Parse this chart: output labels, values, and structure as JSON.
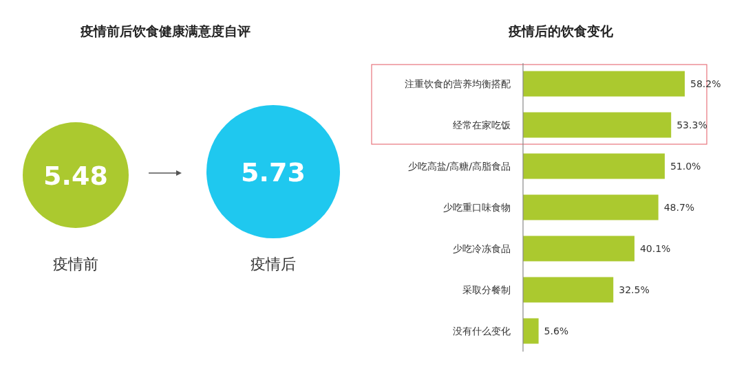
{
  "chart_data": [
    {
      "type": "other",
      "title": "疫情前后饮食健康满意度自评",
      "categories": [
        "疫情前",
        "疫情后"
      ],
      "values": [
        5.48,
        5.73
      ],
      "colors": [
        "#abc92f",
        "#1fc8ef"
      ],
      "data_labels": true
    },
    {
      "type": "bar",
      "orientation": "horizontal",
      "title": "疫情后的饮食变化",
      "categories": [
        "注重饮食的营养均衡搭配",
        "经常在家吃饭",
        "少吃高盐/高糖/高脂食品",
        "少吃重口味食物",
        "少吃冷冻食品",
        "采取分餐制",
        "没有什么变化"
      ],
      "values": [
        58.2,
        53.3,
        51.0,
        48.7,
        40.1,
        32.5,
        5.6
      ],
      "value_labels": [
        "58.2%",
        "53.3%",
        "51.0%",
        "48.7%",
        "40.1%",
        "32.5%",
        "5.6%"
      ],
      "color": "#abc92f"
    }
  ]
}
